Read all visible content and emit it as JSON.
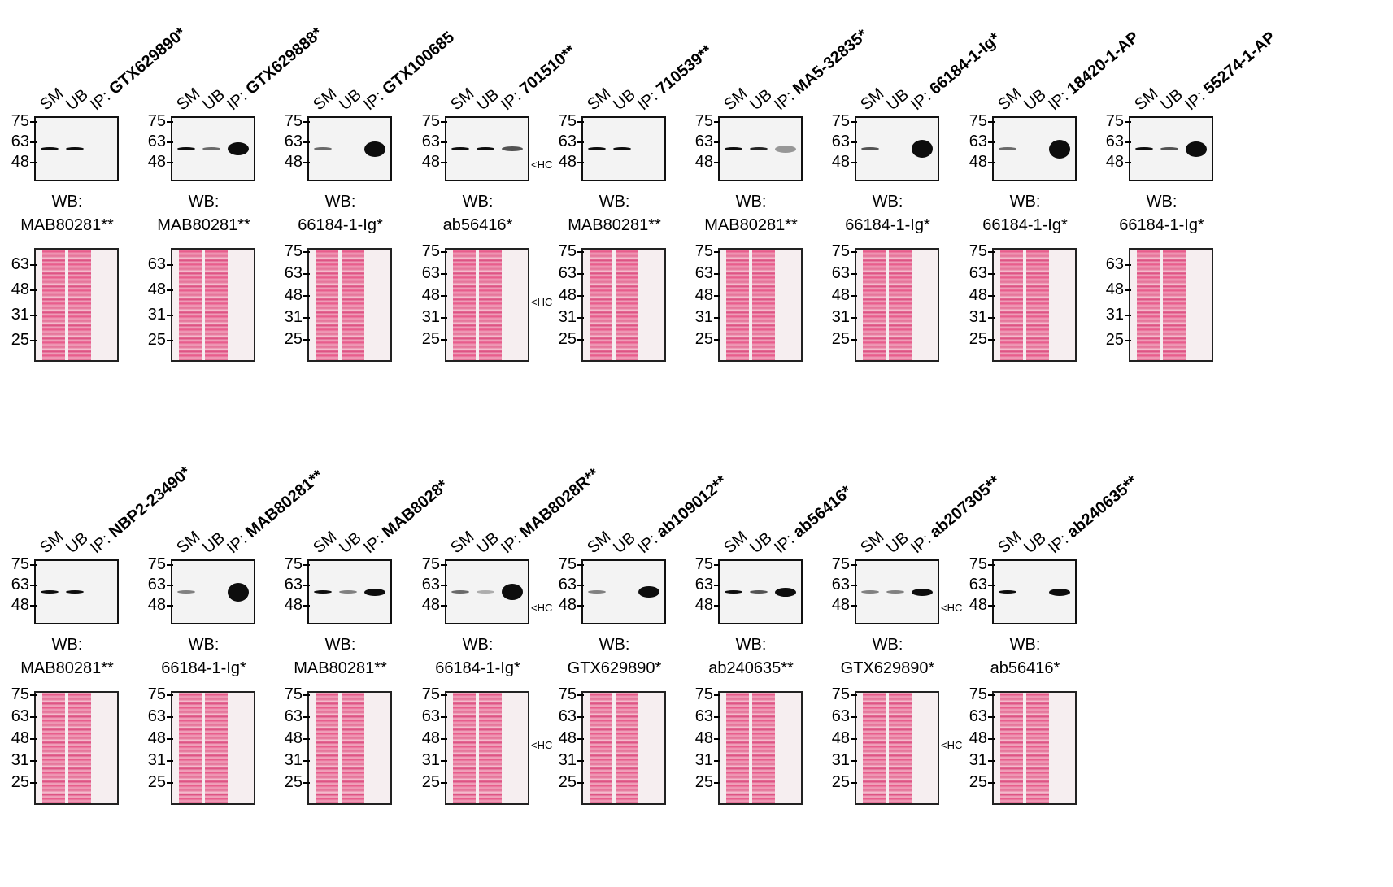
{
  "column_labels": {
    "sm": "SM",
    "ub": "UB",
    "ip_prefix": "IP: "
  },
  "wb_prefix": "WB:",
  "hc_label": "<HC",
  "panels": [
    {
      "ip": "GTX629890*",
      "wb": "MAB80281**",
      "blot_markers": [
        "75-",
        "63-",
        "48-"
      ],
      "stain_markers": [
        "63-",
        "48-",
        "31-",
        "25-"
      ]
    },
    {
      "ip": "GTX629888*",
      "wb": "MAB80281**",
      "blot_markers": [
        "75-",
        "63-",
        "48-"
      ],
      "stain_markers": [
        "63-",
        "48-",
        "31-",
        "25-"
      ]
    },
    {
      "ip": "GTX100685",
      "wb": "66184-1-Ig*",
      "blot_markers": [
        "75-",
        "63-",
        "48-"
      ],
      "stain_markers": [
        "75-",
        "63-",
        "48-",
        "31-",
        "25-"
      ]
    },
    {
      "ip": "701510**",
      "wb": "ab56416*",
      "blot_markers": [
        "75-",
        "63-",
        "48-"
      ],
      "stain_markers": [
        "75-",
        "63-",
        "48-",
        "31-",
        "25-"
      ],
      "hc_blot": true,
      "hc_stain": true
    },
    {
      "ip": "710539**",
      "wb": "MAB80281**",
      "blot_markers": [
        "75-",
        "63-",
        "48-"
      ],
      "stain_markers": [
        "75-",
        "63-",
        "48-",
        "31-",
        "25-"
      ]
    },
    {
      "ip": "MA5-32835*",
      "wb": "MAB80281**",
      "blot_markers": [
        "75-",
        "63-",
        "48-"
      ],
      "stain_markers": [
        "75-",
        "63-",
        "48-",
        "31-",
        "25-"
      ]
    },
    {
      "ip": "66184-1-Ig*",
      "wb": "66184-1-Ig*",
      "blot_markers": [
        "75-",
        "63-",
        "48-"
      ],
      "stain_markers": [
        "75-",
        "63-",
        "48-",
        "31-",
        "25-"
      ]
    },
    {
      "ip": "18420-1-AP",
      "wb": "66184-1-Ig*",
      "blot_markers": [
        "75-",
        "63-",
        "48-"
      ],
      "stain_markers": [
        "75-",
        "63-",
        "48-",
        "31-",
        "25-"
      ]
    },
    {
      "ip": "55274-1-AP",
      "wb": "66184-1-Ig*",
      "blot_markers": [
        "75-",
        "63-",
        "48-"
      ],
      "stain_markers": [
        "63-",
        "48-",
        "31-",
        "25-"
      ]
    },
    {
      "ip": "NBP2-23490*",
      "wb": "MAB80281**",
      "blot_markers": [
        "75-",
        "63-",
        "48-"
      ],
      "stain_markers": [
        "75-",
        "63-",
        "48-",
        "31-",
        "25-"
      ]
    },
    {
      "ip": "MAB80281**",
      "wb": "66184-1-Ig*",
      "blot_markers": [
        "75-",
        "63-",
        "48-"
      ],
      "stain_markers": [
        "75-",
        "63-",
        "48-",
        "31-",
        "25-"
      ]
    },
    {
      "ip": "MAB8028*",
      "wb": "MAB80281**",
      "blot_markers": [
        "75-",
        "63-",
        "48-"
      ],
      "stain_markers": [
        "75-",
        "63-",
        "48-",
        "31-",
        "25-"
      ]
    },
    {
      "ip": "MAB8028R**",
      "wb": "66184-1-Ig*",
      "blot_markers": [
        "75-",
        "63-",
        "48-"
      ],
      "stain_markers": [
        "75-",
        "63-",
        "48-",
        "31-",
        "25-"
      ],
      "hc_blot": true,
      "hc_stain": true
    },
    {
      "ip": "ab109012**",
      "wb": "GTX629890*",
      "blot_markers": [
        "75-",
        "63-",
        "48-"
      ],
      "stain_markers": [
        "75-",
        "63-",
        "48-",
        "31-",
        "25-"
      ]
    },
    {
      "ip": "ab56416*",
      "wb": "ab240635**",
      "blot_markers": [
        "75-",
        "63-",
        "48-"
      ],
      "stain_markers": [
        "75-",
        "63-",
        "48-",
        "31-",
        "25-"
      ]
    },
    {
      "ip": "ab207305**",
      "wb": "GTX629890*",
      "blot_markers": [
        "75-",
        "63-",
        "48-"
      ],
      "stain_markers": [
        "75-",
        "63-",
        "48-",
        "31-",
        "25-"
      ],
      "hc_blot": true,
      "hc_stain": true
    },
    {
      "ip": "ab240635**",
      "wb": "ab56416*",
      "blot_markers": [
        "75-",
        "63-",
        "48-"
      ],
      "stain_markers": [
        "75-",
        "63-",
        "48-",
        "31-",
        "25-"
      ]
    }
  ]
}
